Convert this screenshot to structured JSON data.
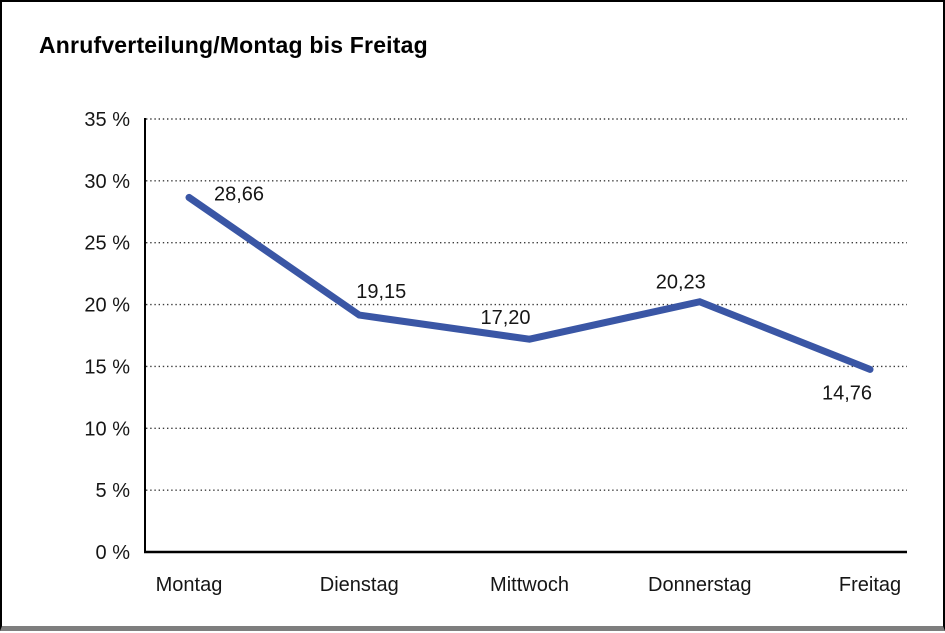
{
  "title": "Anrufverteilung/Montag bis Freitag",
  "chart_data": {
    "type": "line",
    "title": "Anrufverteilung/Montag bis Freitag",
    "categories": [
      "Montag",
      "Dienstag",
      "Mittwoch",
      "Donnerstag",
      "Freitag"
    ],
    "values": [
      28.66,
      19.15,
      17.2,
      20.23,
      14.76
    ],
    "data_labels": [
      "28,66",
      "19,15",
      "17,20",
      "20,23",
      "14,76"
    ],
    "y_tick_labels": [
      "0 %",
      "5 %",
      "10 %",
      "15 %",
      "20 %",
      "25 %",
      "30 %",
      "35 %"
    ],
    "ylim": [
      0,
      35
    ],
    "y_tick_step": 5,
    "grid": "horizontal-dotted",
    "legend": "none",
    "xlabel": "",
    "ylabel": "",
    "line_color": "#3A56A5",
    "axis_color": "#000000",
    "gridline_color": "#3c3c3c",
    "label_color": "#161616"
  }
}
